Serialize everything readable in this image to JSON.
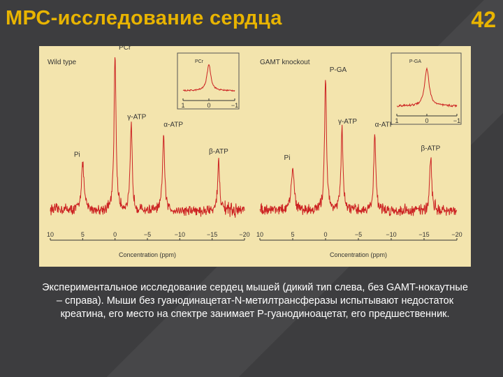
{
  "slide": {
    "title": "МРС-исследование сердца",
    "number": "42",
    "caption": "Экспериментальное исследование сердец мышей (дикий тип слева, без GAMT-нокаутные – справа). Мыши без гуанодинацетат-N-метилтрансферазы испытывают недостаток креатина, его место на спектре занимает Р-гуанодиноацетат, его предшественник."
  },
  "chart_data": [
    {
      "type": "line",
      "title": "Wild type",
      "xlabel": "Concentration (ppm)",
      "xlim": [
        10,
        -20
      ],
      "x_ticks": [
        10,
        5,
        0,
        -5,
        -10,
        -15,
        -20
      ],
      "tick_labels": [
        "10",
        "5",
        "0",
        "−5",
        "−10",
        "−15",
        "−20"
      ],
      "color": "#cc2222",
      "peaks": [
        {
          "label": "Pi",
          "x": 5,
          "height": 0.3
        },
        {
          "label": "PCr",
          "x": 0,
          "height": 1.0
        },
        {
          "label": "γ-ATP",
          "x": -2.5,
          "height": 0.55
        },
        {
          "label": "α-ATP",
          "x": -7.5,
          "height": 0.5
        },
        {
          "label": "β-ATP",
          "x": -16,
          "height": 0.33
        }
      ],
      "inset": {
        "label": "PCr",
        "xlim": [
          1,
          -1
        ],
        "tick_labels": [
          "1",
          "0",
          "−1"
        ],
        "peaks": [
          {
            "x": 0,
            "height": 1.0
          }
        ]
      }
    },
    {
      "type": "line",
      "title": "GAMT knockout",
      "xlabel": "Concentration (ppm)",
      "xlim": [
        10,
        -20
      ],
      "x_ticks": [
        10,
        5,
        0,
        -5,
        -10,
        -15,
        -20
      ],
      "tick_labels": [
        "10",
        "5",
        "0",
        "−5",
        "−10",
        "−15",
        "−20"
      ],
      "color": "#cc2222",
      "peaks": [
        {
          "label": "Pi",
          "x": 5,
          "height": 0.28
        },
        {
          "label": "P-GA",
          "x": 0,
          "height": 0.85
        },
        {
          "label": "γ-ATP",
          "x": -2.5,
          "height": 0.52
        },
        {
          "label": "α-ATP",
          "x": -7.5,
          "height": 0.5
        },
        {
          "label": "β-ATP",
          "x": -16,
          "height": 0.35
        }
      ],
      "inset": {
        "label": "P-GA",
        "xlim": [
          1,
          -1
        ],
        "tick_labels": [
          "1",
          "0",
          "−1"
        ],
        "peaks": [
          {
            "x": 0,
            "height": 0.9
          }
        ]
      }
    }
  ]
}
